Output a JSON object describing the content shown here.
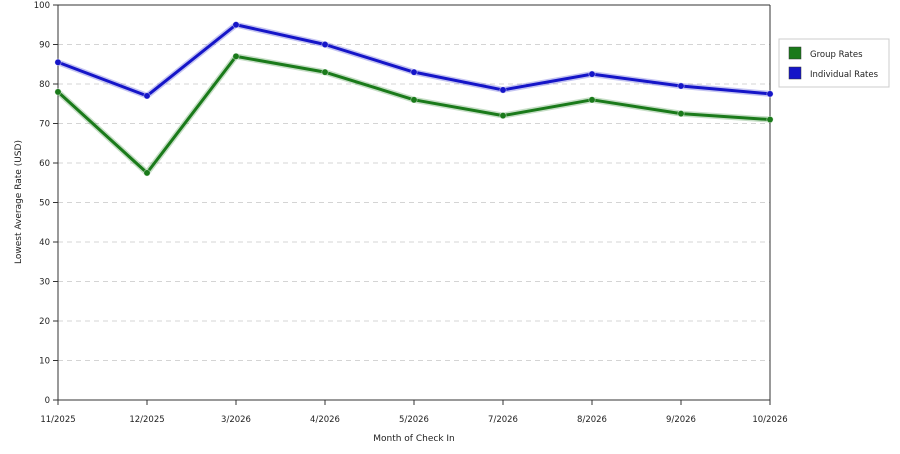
{
  "chart_data": {
    "type": "line",
    "title": "",
    "xlabel": "Month of Check In",
    "ylabel": "Lowest Average Rate (USD)",
    "categories": [
      "11/2025",
      "12/2025",
      "3/2026",
      "4/2026",
      "5/2026",
      "7/2026",
      "8/2026",
      "9/2026",
      "10/2026"
    ],
    "ylim": [
      0,
      100
    ],
    "yticks": [
      0,
      10,
      20,
      30,
      40,
      50,
      60,
      70,
      80,
      90,
      100
    ],
    "grid": true,
    "legend_position": "right",
    "series": [
      {
        "name": "Group Rates",
        "color": "#1a7a1a",
        "values": [
          78,
          57.5,
          87,
          83,
          76,
          72,
          76,
          72.5,
          71
        ]
      },
      {
        "name": "Individual Rates",
        "color": "#1515c8",
        "values": [
          85.5,
          77,
          95,
          90,
          83,
          78.5,
          82.5,
          79.5,
          77.5
        ]
      }
    ]
  }
}
